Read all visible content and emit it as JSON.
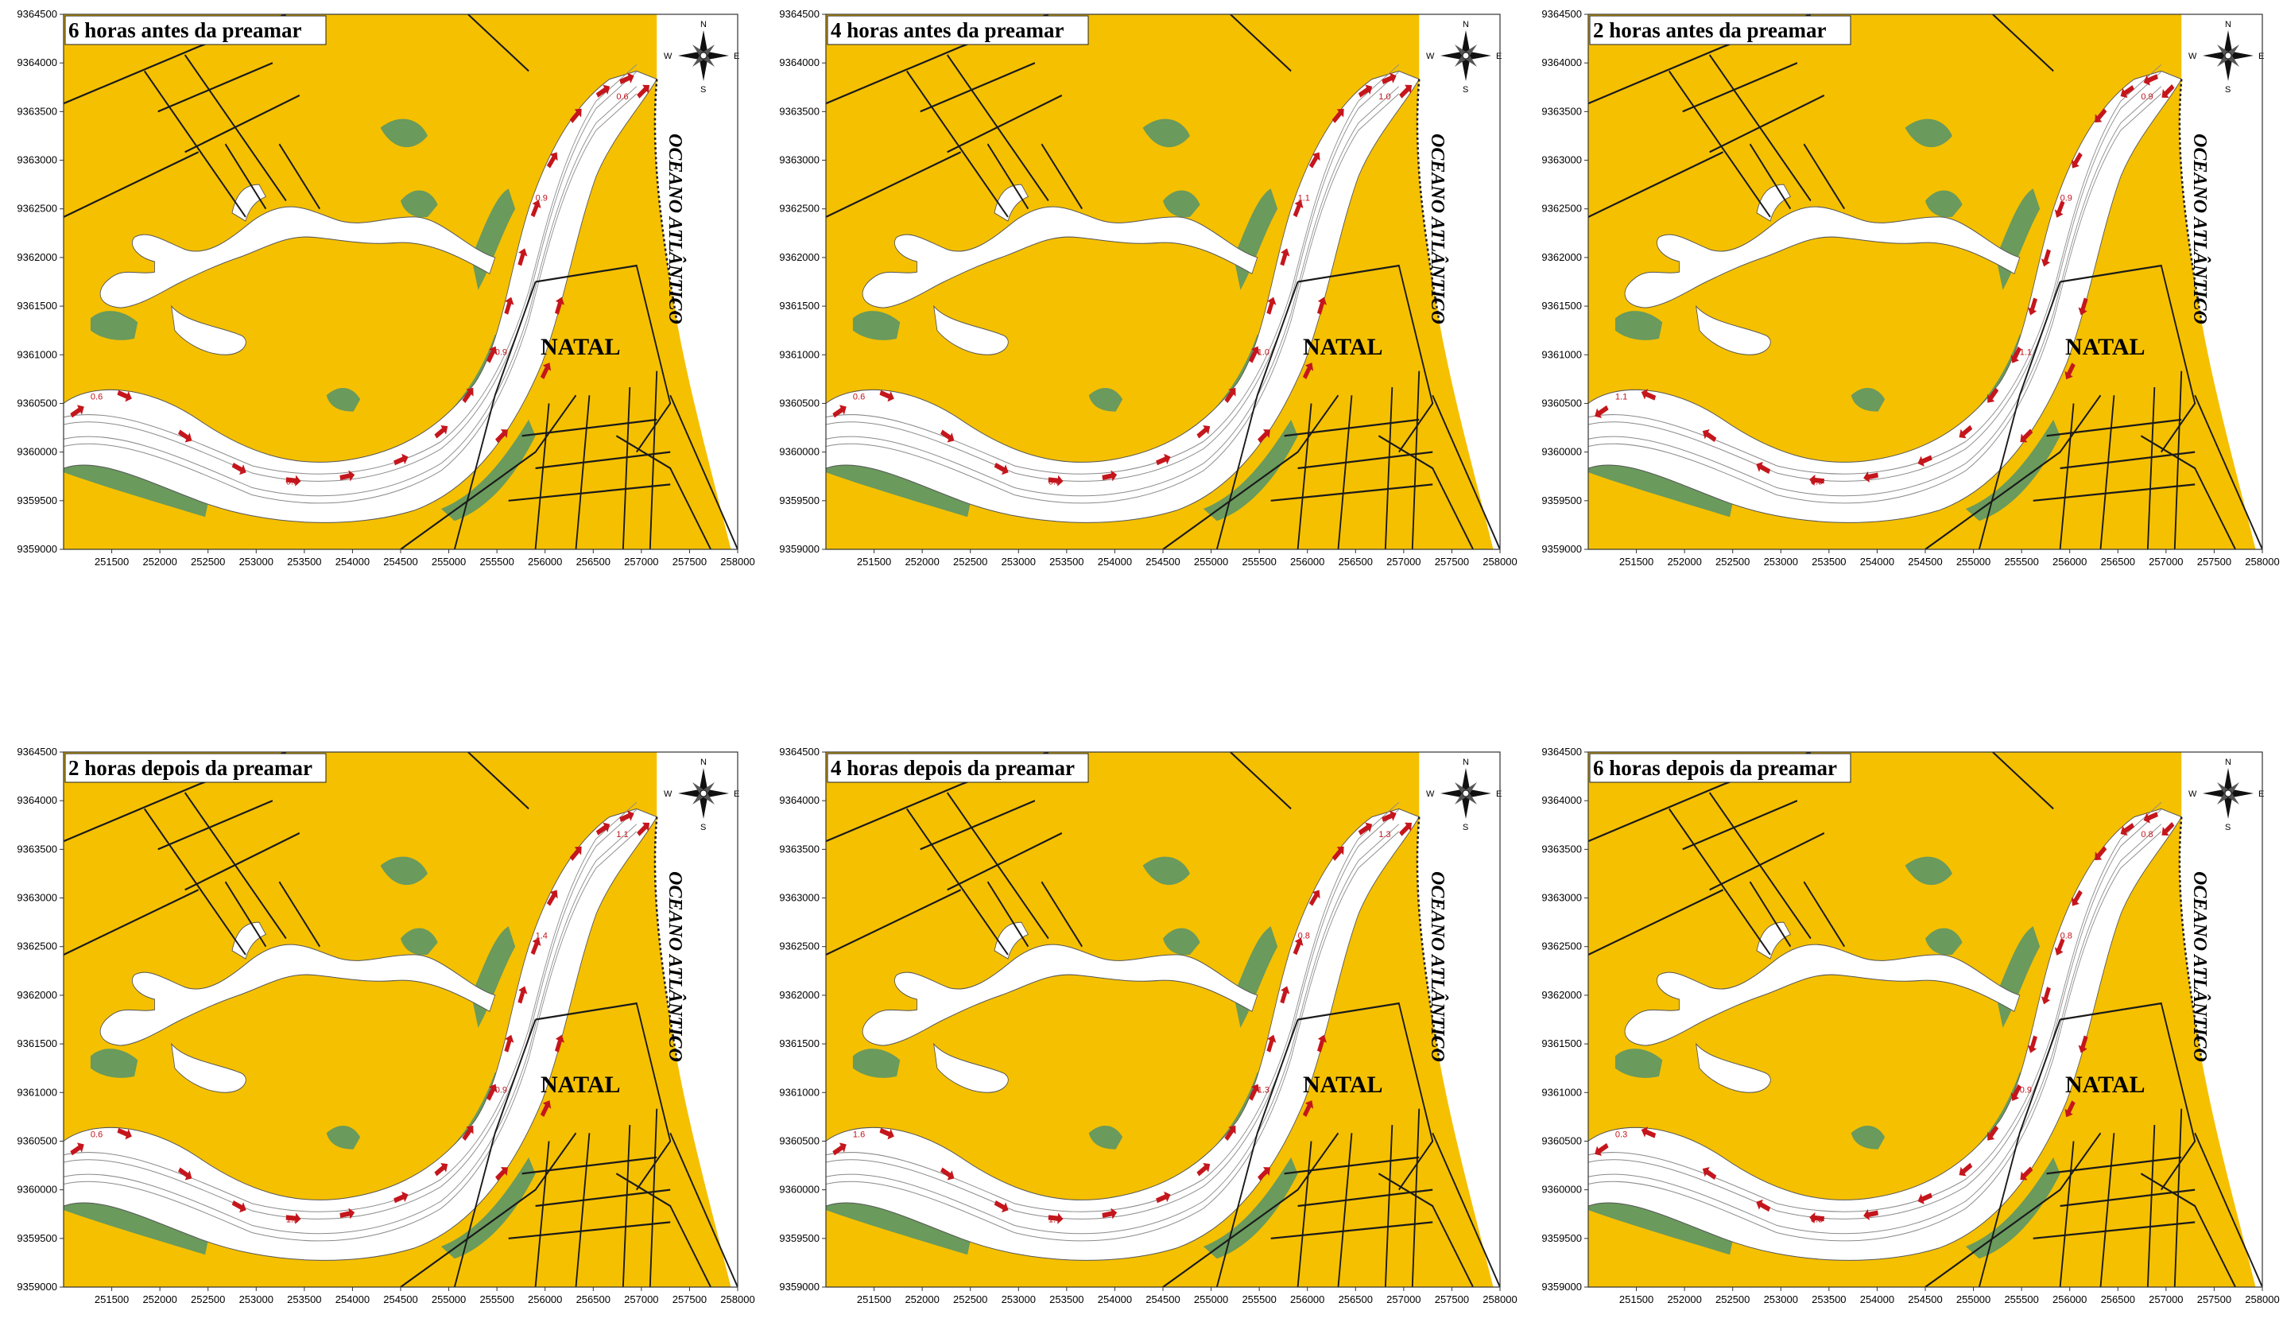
{
  "map": {
    "panels": [
      {
        "title": "6 horas antes da preamar",
        "labels": [
          "0.6",
          "0.6",
          "0.9",
          "0.9",
          "0.6"
        ]
      },
      {
        "title": "4 horas antes da preamar",
        "labels": [
          "0.6",
          "0.9",
          "1.0",
          "1.1",
          "1.0"
        ]
      },
      {
        "title": "2 horas antes da preamar",
        "labels": [
          "1.1",
          "0.9",
          "1.1",
          "0.9",
          "0.9"
        ]
      },
      {
        "title": "2 horas depois da preamar",
        "labels": [
          "0.6",
          "1.1",
          "0.9",
          "1.4",
          "1.1"
        ]
      },
      {
        "title": "4 horas depois da preamar",
        "labels": [
          "1.6",
          "1.4",
          "1.3",
          "0.8",
          "1.3"
        ]
      },
      {
        "title": "6 horas depois da preamar",
        "labels": [
          "0.3",
          "0.3",
          "0.9",
          "0.8",
          "0.8"
        ]
      }
    ],
    "place_label": "NATAL",
    "ocean_label": "OCEANO ATLÂNTICO",
    "compass": {
      "n": "N",
      "s": "S",
      "e": "E",
      "w": "W"
    },
    "x_ticks": [
      "251500",
      "252000",
      "252500",
      "253000",
      "253500",
      "254000",
      "254500",
      "255000",
      "255500",
      "256000",
      "256500",
      "257000",
      "257500",
      "258000"
    ],
    "y_ticks": [
      "9364500",
      "9364000",
      "9363500",
      "9363000",
      "9362500",
      "9362000",
      "9361500",
      "9361000",
      "9360500",
      "9360000",
      "9359500",
      "9359000"
    ],
    "x_range": [
      251000,
      258000
    ],
    "y_range": [
      9359000,
      9364500
    ],
    "colors": {
      "land": "#f5c000",
      "mangrove": "#6a9a5c",
      "water": "#ffffff",
      "arrow": "#c4161c",
      "road": "#1a1a1a",
      "contour": "#8a8a8a"
    }
  }
}
